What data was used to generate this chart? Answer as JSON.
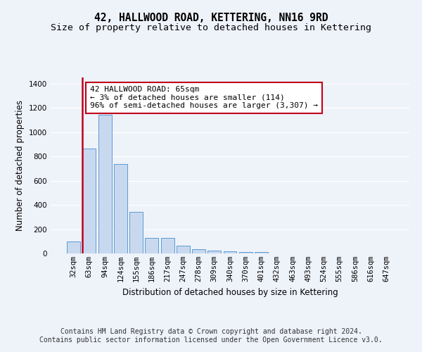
{
  "title": "42, HALLWOOD ROAD, KETTERING, NN16 9RD",
  "subtitle": "Size of property relative to detached houses in Kettering",
  "xlabel": "Distribution of detached houses by size in Kettering",
  "ylabel": "Number of detached properties",
  "categories": [
    "32sqm",
    "63sqm",
    "94sqm",
    "124sqm",
    "155sqm",
    "186sqm",
    "217sqm",
    "247sqm",
    "278sqm",
    "309sqm",
    "340sqm",
    "370sqm",
    "401sqm",
    "432sqm",
    "463sqm",
    "493sqm",
    "524sqm",
    "555sqm",
    "586sqm",
    "616sqm",
    "647sqm"
  ],
  "values": [
    100,
    865,
    1145,
    735,
    345,
    130,
    128,
    63,
    32,
    25,
    18,
    14,
    12,
    0,
    0,
    0,
    0,
    0,
    0,
    0,
    0
  ],
  "bar_color": "#c8d9ef",
  "bar_edge_color": "#5b9bd5",
  "highlight_bar_index": 1,
  "highlight_color": "#c0001a",
  "annotation_box_text": "42 HALLWOOD ROAD: 65sqm\n← 3% of detached houses are smaller (114)\n96% of semi-detached houses are larger (3,307) →",
  "annotation_box_color": "#c0001a",
  "ylim": [
    0,
    1450
  ],
  "yticks": [
    0,
    200,
    400,
    600,
    800,
    1000,
    1200,
    1400
  ],
  "footer_line1": "Contains HM Land Registry data © Crown copyright and database right 2024.",
  "footer_line2": "Contains public sector information licensed under the Open Government Licence v3.0.",
  "bg_color": "#eef2f9",
  "grid_color": "#ffffff",
  "title_fontsize": 10.5,
  "subtitle_fontsize": 9.5,
  "axis_label_fontsize": 8.5,
  "tick_fontsize": 7.5,
  "footer_fontsize": 7,
  "ann_fontsize": 8
}
